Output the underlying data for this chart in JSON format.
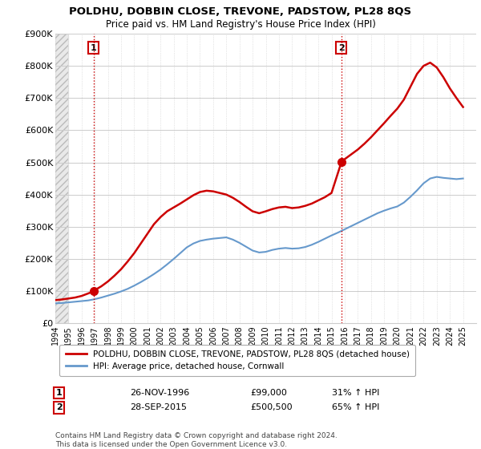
{
  "title": "POLDHU, DOBBIN CLOSE, TREVONE, PADSTOW, PL28 8QS",
  "subtitle": "Price paid vs. HM Land Registry's House Price Index (HPI)",
  "ylim": [
    0,
    900000
  ],
  "yticks": [
    0,
    100000,
    200000,
    300000,
    400000,
    500000,
    600000,
    700000,
    800000,
    900000
  ],
  "ytick_labels": [
    "£0",
    "£100K",
    "£200K",
    "£300K",
    "£400K",
    "£500K",
    "£600K",
    "£700K",
    "£800K",
    "£900K"
  ],
  "sale1_date": 1996.9,
  "sale1_price": 99000,
  "sale1_label": "1",
  "sale2_date": 2015.75,
  "sale2_price": 500500,
  "sale2_label": "2",
  "line_color_price": "#cc0000",
  "line_color_hpi": "#6699cc",
  "marker_color": "#cc0000",
  "vline_color": "#cc0000",
  "grid_color": "#cccccc",
  "legend_label1": "POLDHU, DOBBIN CLOSE, TREVONE, PADSTOW, PL28 8QS (detached house)",
  "legend_label2": "HPI: Average price, detached house, Cornwall",
  "footer": "Contains HM Land Registry data © Crown copyright and database right 2024.\nThis data is licensed under the Open Government Licence v3.0.",
  "xmin": 1994,
  "xmax": 2026,
  "hpi_years": [
    1994,
    1994.5,
    1995,
    1995.5,
    1996,
    1996.5,
    1997,
    1997.5,
    1998,
    1998.5,
    1999,
    1999.5,
    2000,
    2000.5,
    2001,
    2001.5,
    2002,
    2002.5,
    2003,
    2003.5,
    2004,
    2004.5,
    2005,
    2005.5,
    2006,
    2006.5,
    2007,
    2007.5,
    2008,
    2008.5,
    2009,
    2009.5,
    2010,
    2010.5,
    2011,
    2011.5,
    2012,
    2012.5,
    2013,
    2013.5,
    2014,
    2014.5,
    2015,
    2015.5,
    2016,
    2016.5,
    2017,
    2017.5,
    2018,
    2018.5,
    2019,
    2019.5,
    2020,
    2020.5,
    2021,
    2021.5,
    2022,
    2022.5,
    2023,
    2023.5,
    2024,
    2024.5,
    2025
  ],
  "hpi_values": [
    62000,
    63000,
    65000,
    67000,
    69000,
    71000,
    75000,
    80000,
    86000,
    92000,
    99000,
    107000,
    117000,
    128000,
    140000,
    153000,
    167000,
    183000,
    200000,
    218000,
    236000,
    248000,
    256000,
    260000,
    263000,
    265000,
    267000,
    260000,
    250000,
    238000,
    226000,
    220000,
    222000,
    228000,
    232000,
    234000,
    232000,
    233000,
    237000,
    244000,
    253000,
    263000,
    273000,
    282000,
    292000,
    302000,
    312000,
    322000,
    332000,
    342000,
    350000,
    357000,
    363000,
    375000,
    393000,
    413000,
    435000,
    450000,
    455000,
    452000,
    450000,
    448000,
    450000
  ],
  "price_years": [
    1994,
    1994.5,
    1995,
    1995.5,
    1996,
    1996.9,
    1997,
    1997.5,
    1998,
    1998.5,
    1999,
    1999.5,
    2000,
    2000.5,
    2001,
    2001.5,
    2002,
    2002.5,
    2003,
    2003.5,
    2004,
    2004.5,
    2005,
    2005.5,
    2006,
    2006.5,
    2007,
    2007.5,
    2008,
    2008.5,
    2009,
    2009.5,
    2010,
    2010.5,
    2011,
    2011.5,
    2012,
    2012.5,
    2013,
    2013.5,
    2014,
    2014.5,
    2015,
    2015.75,
    2016,
    2016.5,
    2017,
    2017.5,
    2018,
    2018.5,
    2019,
    2019.5,
    2020,
    2020.5,
    2021,
    2021.5,
    2022,
    2022.5,
    2023,
    2023.5,
    2024,
    2024.5,
    2025
  ],
  "price_values": [
    72000,
    74000,
    77000,
    80000,
    85000,
    99000,
    103000,
    115000,
    130000,
    148000,
    168000,
    192000,
    218000,
    248000,
    278000,
    308000,
    330000,
    348000,
    360000,
    372000,
    385000,
    398000,
    408000,
    412000,
    410000,
    405000,
    400000,
    390000,
    377000,
    362000,
    348000,
    342000,
    348000,
    355000,
    360000,
    362000,
    358000,
    360000,
    365000,
    372000,
    382000,
    392000,
    405000,
    500500,
    510000,
    525000,
    540000,
    558000,
    578000,
    600000,
    622000,
    645000,
    667000,
    695000,
    735000,
    775000,
    800000,
    810000,
    795000,
    765000,
    730000,
    700000,
    672000
  ]
}
